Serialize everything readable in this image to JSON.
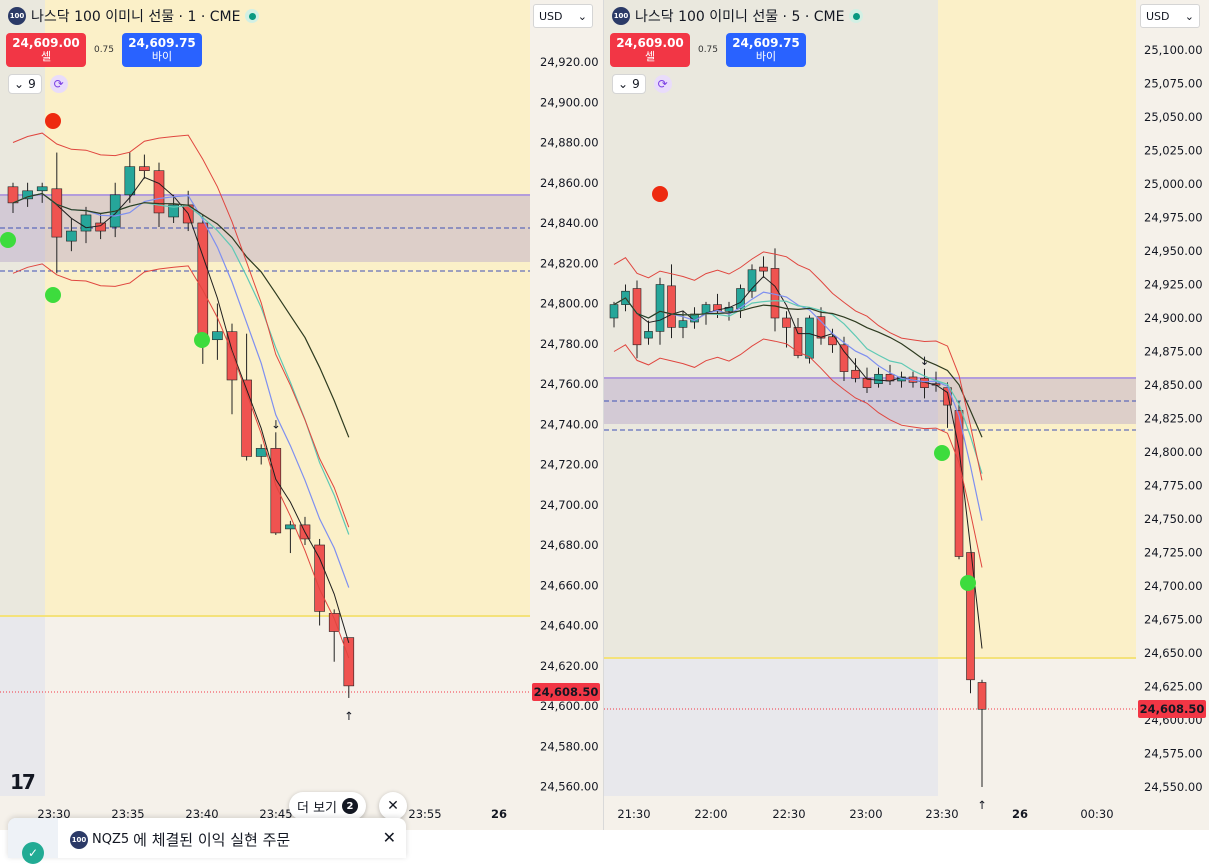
{
  "charts": [
    {
      "symbol_badge": "100",
      "title": "나스닥 100 이미니 선물 · 1 · CME",
      "sell_price": "24,609.00",
      "sell_label": "셀",
      "spread": "0.75",
      "buy_price": "24,609.75",
      "buy_label": "바이",
      "indicators_count": "9",
      "currency": "USD",
      "last_price_label": "24,608.50",
      "y_ticks": [
        "24,920.00",
        "24,900.00",
        "24,880.00",
        "24,860.00",
        "24,840.00",
        "24,820.00",
        "24,800.00",
        "24,780.00",
        "24,760.00",
        "24,740.00",
        "24,720.00",
        "24,700.00",
        "24,680.00",
        "24,660.00",
        "24,640.00",
        "24,620.00",
        "24,600.00",
        "24,580.00",
        "24,560.00"
      ],
      "x_ticks": [
        "23:30",
        "23:35",
        "23:40",
        "23:45",
        "23:55",
        "26"
      ]
    },
    {
      "symbol_badge": "100",
      "title": "나스닥 100 이미니 선물 · 5 · CME",
      "sell_price": "24,609.00",
      "sell_label": "셀",
      "spread": "0.75",
      "buy_price": "24,609.75",
      "buy_label": "바이",
      "indicators_count": "9",
      "currency": "USD",
      "last_price_label": "24,608.50",
      "y_ticks": [
        "25,100.00",
        "25,075.00",
        "25,050.00",
        "25,025.00",
        "25,000.00",
        "24,975.00",
        "24,950.00",
        "24,925.00",
        "24,900.00",
        "24,875.00",
        "24,850.00",
        "24,825.00",
        "24,800.00",
        "24,775.00",
        "24,750.00",
        "24,725.00",
        "24,700.00",
        "24,675.00",
        "24,650.00",
        "24,625.00",
        "24,600.00",
        "24,575.00",
        "24,550.00"
      ],
      "x_ticks": [
        "21:30",
        "22:00",
        "22:30",
        "23:00",
        "23:30",
        "26",
        "00:30"
      ]
    }
  ],
  "more_button": {
    "label": "더 보기",
    "count": "2"
  },
  "toast": {
    "symbol_badge": "100",
    "symbol": "NQZ5",
    "message": "에 체결된 이익 실현 주문"
  },
  "colors": {
    "up": "#26a69a",
    "down": "#ef5350",
    "sell": "#f23645",
    "buy": "#2962ff",
    "session": "#fbf0c2"
  },
  "chart_data": [
    {
      "type": "candlestick",
      "title": "나스닥 100 이미니 선물 · 1 · CME",
      "interval": "1m",
      "last_price": 24608.5,
      "ylim": [
        24550,
        24930
      ],
      "x_ticks": [
        "23:30",
        "23:35",
        "23:40",
        "23:45",
        "23:55",
        "26"
      ],
      "ohlc": [
        [
          24858,
          24860,
          24845,
          24850
        ],
        [
          24852,
          24860,
          24848,
          24856
        ],
        [
          24856,
          24860,
          24850,
          24858
        ],
        [
          24857,
          24875,
          24815,
          24833
        ],
        [
          24831,
          24842,
          24826,
          24836
        ],
        [
          24836,
          24848,
          24830,
          24844
        ],
        [
          24840,
          24845,
          24832,
          24836
        ],
        [
          24838,
          24860,
          24833,
          24854
        ],
        [
          24854,
          24875,
          24850,
          24868
        ],
        [
          24868,
          24874,
          24862,
          24866
        ],
        [
          24866,
          24870,
          24838,
          24845
        ],
        [
          24843,
          24854,
          24840,
          24849
        ],
        [
          24849,
          24856,
          24836,
          24840
        ],
        [
          24840,
          24844,
          24770,
          24782
        ],
        [
          24782,
          24800,
          24772,
          24786
        ],
        [
          24786,
          24790,
          24745,
          24762
        ],
        [
          24762,
          24785,
          24722,
          24724
        ],
        [
          24724,
          24730,
          24720,
          24728
        ],
        [
          24728,
          24736,
          24685,
          24686
        ],
        [
          24688,
          24692,
          24676,
          24690
        ],
        [
          24690,
          24694,
          24680,
          24683
        ],
        [
          24680,
          24683,
          24640,
          24647
        ],
        [
          24646,
          24648,
          24622,
          24637
        ],
        [
          24634,
          24634,
          24604,
          24610
        ]
      ]
    },
    {
      "type": "candlestick",
      "title": "나스닥 100 이미니 선물 · 5 · CME",
      "interval": "5m",
      "last_price": 24608.5,
      "ylim": [
        24535,
        25115
      ],
      "x_ticks": [
        "21:30",
        "22:00",
        "22:30",
        "23:00",
        "23:30",
        "26",
        "00:30"
      ],
      "ohlc": [
        [
          24900,
          24912,
          24893,
          24910
        ],
        [
          24910,
          24925,
          24905,
          24920
        ],
        [
          24922,
          24928,
          24870,
          24880
        ],
        [
          24885,
          24898,
          24880,
          24890
        ],
        [
          24890,
          24930,
          24880,
          24925
        ],
        [
          24924,
          24940,
          24885,
          24893
        ],
        [
          24893,
          24905,
          24885,
          24898
        ],
        [
          24897,
          24908,
          24892,
          24903
        ],
        [
          24903,
          24912,
          24895,
          24910
        ],
        [
          24910,
          24918,
          24900,
          24905
        ],
        [
          24905,
          24912,
          24898,
          24908
        ],
        [
          24907,
          24925,
          24900,
          24922
        ],
        [
          24920,
          24940,
          24915,
          24936
        ],
        [
          24938,
          24946,
          24930,
          24935
        ],
        [
          24937,
          24952,
          24890,
          24900
        ],
        [
          24900,
          24905,
          24878,
          24893
        ],
        [
          24893,
          24900,
          24870,
          24872
        ],
        [
          24870,
          24902,
          24866,
          24900
        ],
        [
          24901,
          24908,
          24880,
          24885
        ],
        [
          24886,
          24892,
          24874,
          24880
        ],
        [
          24880,
          24886,
          24853,
          24860
        ],
        [
          24861,
          24870,
          24852,
          24855
        ],
        [
          24855,
          24863,
          24844,
          24848
        ],
        [
          24851,
          24863,
          24848,
          24858
        ],
        [
          24858,
          24865,
          24850,
          24853
        ],
        [
          24853,
          24860,
          24848,
          24856
        ],
        [
          24856,
          24860,
          24848,
          24852
        ],
        [
          24855,
          24862,
          24840,
          24848
        ],
        [
          24851,
          24860,
          24845,
          24850
        ],
        [
          24848,
          24852,
          24818,
          24835
        ],
        [
          24831,
          24838,
          24720,
          24722
        ],
        [
          24725,
          24725,
          24620,
          24630
        ],
        [
          24628,
          24630,
          24550,
          24608
        ]
      ]
    }
  ]
}
